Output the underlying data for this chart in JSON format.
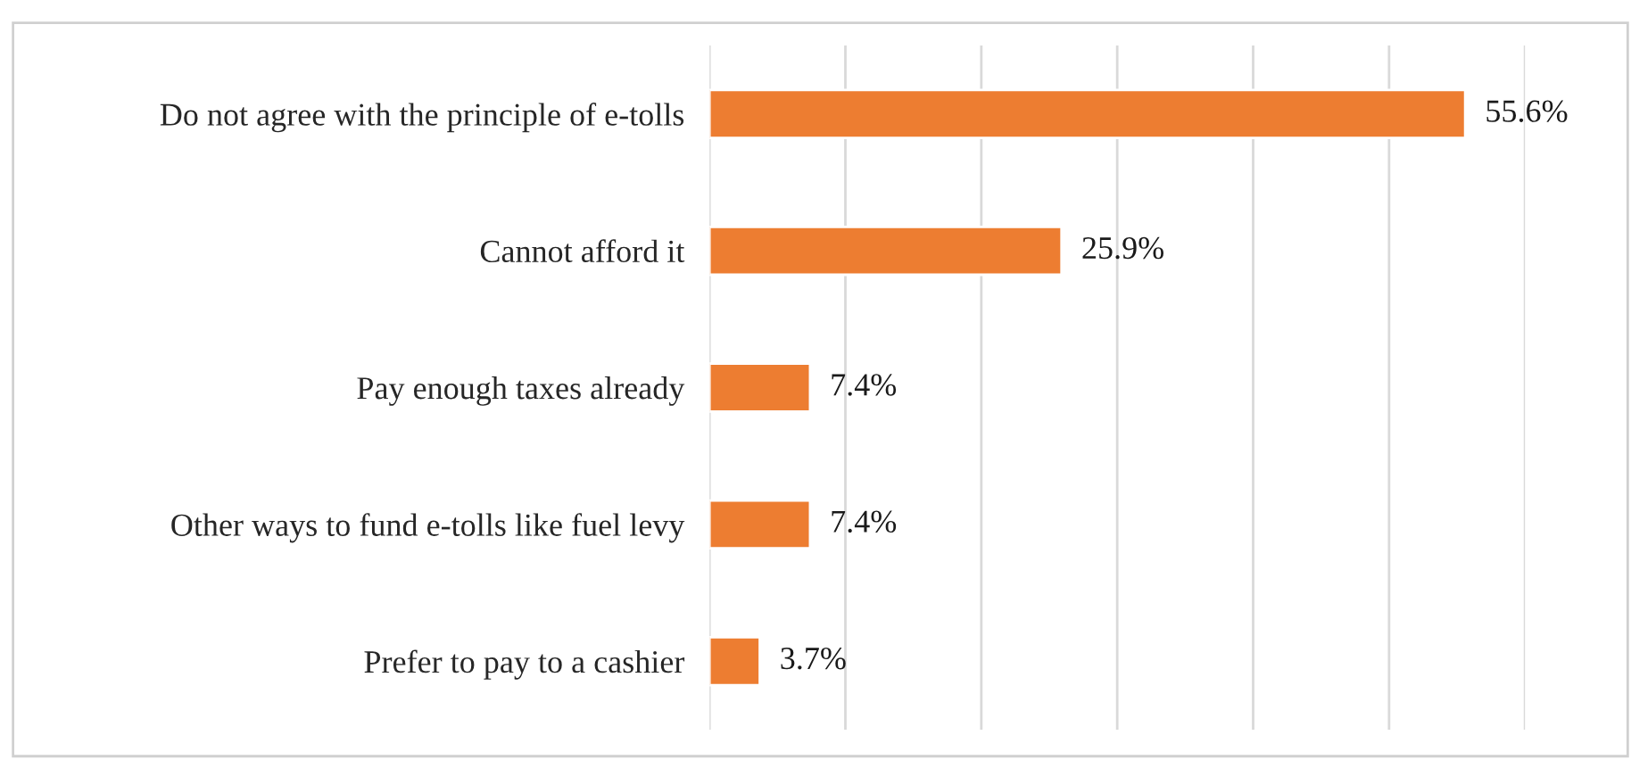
{
  "chart_data": {
    "type": "bar",
    "orientation": "horizontal",
    "categories": [
      "Do not agree with the principle of e-tolls",
      "Cannot afford it",
      "Pay enough taxes already",
      "Other ways to fund e-tolls like fuel levy",
      "Prefer to pay to a cashier"
    ],
    "values": [
      55.6,
      25.9,
      7.4,
      7.4,
      3.7
    ],
    "value_labels": [
      "55.6%",
      "25.9%",
      "7.4%",
      "7.4%",
      "3.7%"
    ],
    "color": "#ed7d31",
    "xlim": [
      0,
      60
    ],
    "xticks": [
      {
        "value": 0,
        "label": null
      },
      {
        "value": 10,
        "label": null
      },
      {
        "value": 20,
        "label": null
      },
      {
        "value": 30,
        "label": null
      },
      {
        "value": 40,
        "label": null
      },
      {
        "value": 50,
        "label": null
      },
      {
        "value": 60,
        "label": null
      }
    ],
    "grid": "x",
    "tick_labels": "y",
    "legend": false
  }
}
